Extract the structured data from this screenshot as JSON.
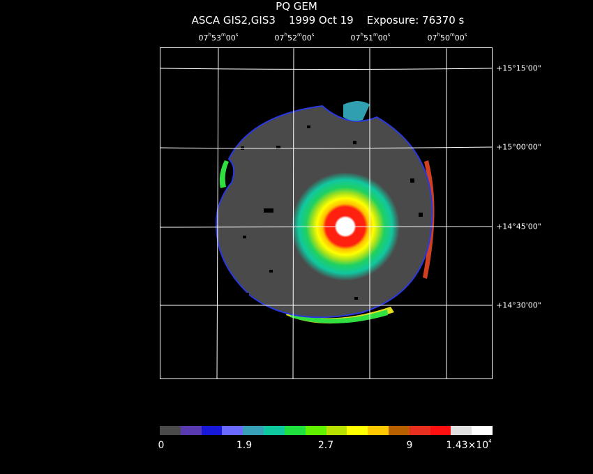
{
  "header": {
    "title": "PQ GEM",
    "subtitle": "ASCA GIS2,GIS3    1999 Oct 19    Exposure: 76370 s"
  },
  "ra_labels": [
    {
      "h": "07",
      "m": "53",
      "s": "00"
    },
    {
      "h": "07",
      "m": "52",
      "s": "00"
    },
    {
      "h": "07",
      "m": "51",
      "s": "00"
    },
    {
      "h": "07",
      "m": "50",
      "s": "00"
    }
  ],
  "dec_labels": [
    {
      "deg": "+15",
      "min": "15",
      "sec": "00"
    },
    {
      "deg": "+15",
      "min": "00",
      "sec": "00"
    },
    {
      "deg": "+14",
      "min": "45",
      "sec": "00"
    },
    {
      "deg": "+14",
      "min": "30",
      "sec": "00"
    }
  ],
  "colorbar": {
    "colors": [
      "#4a4a4a",
      "#5a3ab0",
      "#1818d8",
      "#6a6aff",
      "#38a0b8",
      "#10c8a0",
      "#20e040",
      "#60f000",
      "#b8e000",
      "#ffff00",
      "#ffc800",
      "#b86000",
      "#e83020",
      "#ff1010",
      "#e0e0e0",
      "#ffffff"
    ],
    "tick_labels": [
      "0",
      "1.9",
      "2.7",
      "9",
      "1.43×10"
    ],
    "tick_exponent": "4"
  }
}
